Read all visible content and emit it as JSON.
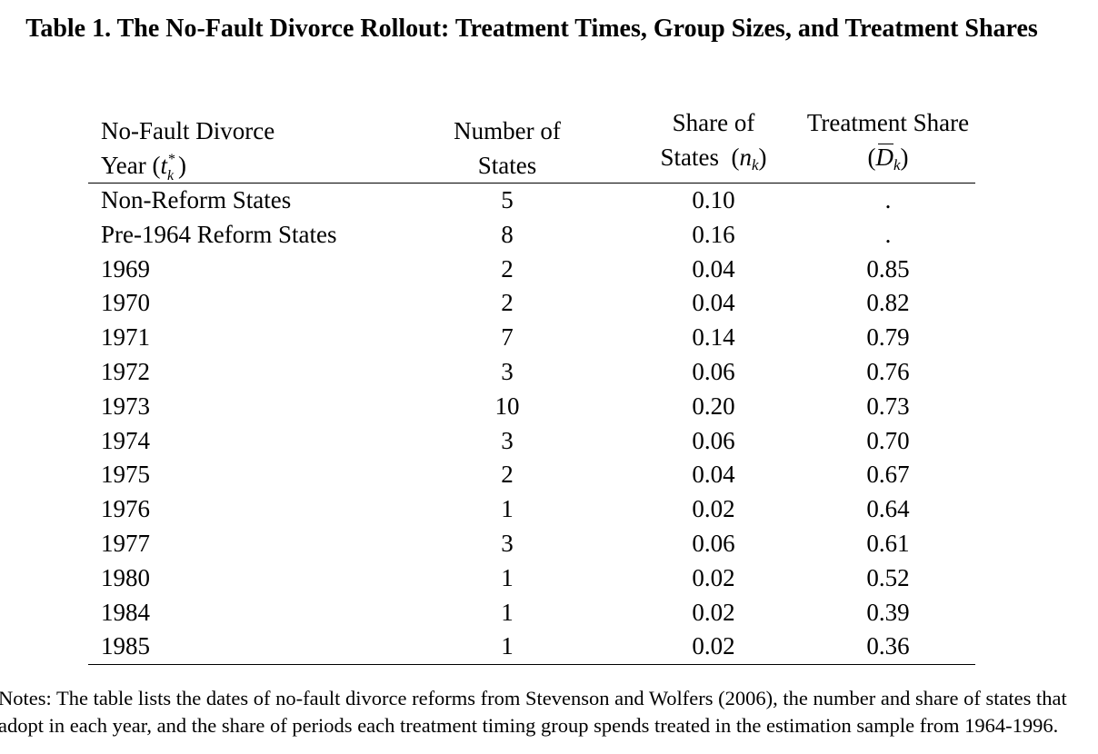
{
  "title": "Table 1. The No-Fault Divorce Rollout: Treatment Times, Group Sizes, and Treatment Shares",
  "headers": {
    "col1_line1": "No-Fault Divorce",
    "col1_line2": "Year (",
    "col1_sym": "t",
    "col1_sup": "*",
    "col1_sub": "k",
    "col1_close": ")",
    "col2_line1": "Number of",
    "col2_line2": "States",
    "col3_line1": "Share of",
    "col3_line2": "States",
    "col3_open": "(",
    "col3_sym": "n",
    "col3_sub": "k",
    "col3_close": ")",
    "col4_line1": "Treatment Share",
    "col4_open": "(",
    "col4_sym": "D",
    "col4_sub": "k",
    "col4_close": ")"
  },
  "rows": [
    {
      "label": "Non-Reform States",
      "n": "5",
      "share": "0.10",
      "treat": "."
    },
    {
      "label": "Pre-1964 Reform States",
      "n": "8",
      "share": "0.16",
      "treat": "."
    },
    {
      "label": "1969",
      "n": "2",
      "share": "0.04",
      "treat": "0.85"
    },
    {
      "label": "1970",
      "n": "2",
      "share": "0.04",
      "treat": "0.82"
    },
    {
      "label": "1971",
      "n": "7",
      "share": "0.14",
      "treat": "0.79"
    },
    {
      "label": "1972",
      "n": "3",
      "share": "0.06",
      "treat": "0.76"
    },
    {
      "label": "1973",
      "n": "10",
      "share": "0.20",
      "treat": "0.73"
    },
    {
      "label": "1974",
      "n": "3",
      "share": "0.06",
      "treat": "0.70"
    },
    {
      "label": "1975",
      "n": "2",
      "share": "0.04",
      "treat": "0.67"
    },
    {
      "label": "1976",
      "n": "1",
      "share": "0.02",
      "treat": "0.64"
    },
    {
      "label": "1977",
      "n": "3",
      "share": "0.06",
      "treat": "0.61"
    },
    {
      "label": "1980",
      "n": "1",
      "share": "0.02",
      "treat": "0.52"
    },
    {
      "label": "1984",
      "n": "1",
      "share": "0.02",
      "treat": "0.39"
    },
    {
      "label": "1985",
      "n": "1",
      "share": "0.02",
      "treat": "0.36"
    }
  ],
  "notes": "Notes: The table lists the dates of no-fault divorce reforms from Stevenson and Wolfers (2006), the number and share of states that adopt in each year, and the share of periods each treatment timing group spends treated in the estimation sample from 1964-1996."
}
